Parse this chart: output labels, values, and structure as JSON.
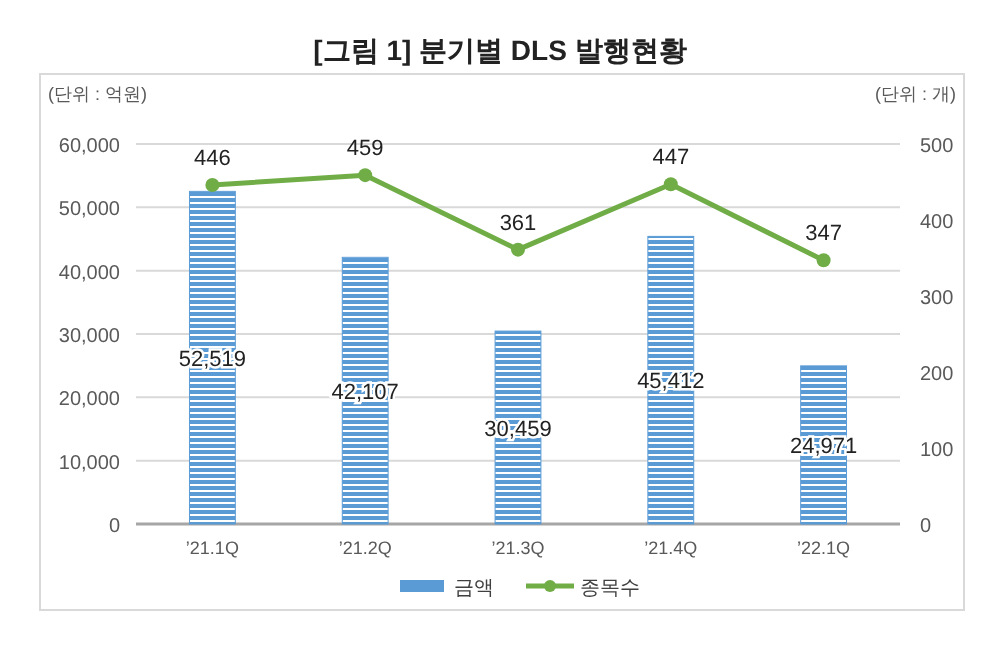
{
  "chart_data": {
    "type": "bar",
    "title": "[그림 1] 분기별 DLS 발행현황",
    "ylabel": "(단위 : 억원)",
    "y2label": "(단위 : 개)",
    "categories": [
      "’21.1Q",
      "’21.2Q",
      "’21.3Q",
      "’21.4Q",
      "’22.1Q"
    ],
    "series": [
      {
        "name": "금액",
        "color": "#5b9bd5",
        "values": [
          52519,
          42107,
          30459,
          45412,
          24971
        ],
        "value_labels": [
          "52,519",
          "42,107",
          "30,459",
          "45,412",
          "24,971"
        ]
      },
      {
        "name": "종목수",
        "type": "line",
        "axis": "y2",
        "color": "#70ad47",
        "marker": "circle",
        "values": [
          446,
          459,
          361,
          447,
          347
        ],
        "value_labels": [
          "446",
          "459",
          "361",
          "447",
          "347"
        ]
      }
    ],
    "ylim": [
      0,
      60000
    ],
    "yticks": [
      0,
      {
        "value": 10000,
        "label": "10,000"
      },
      {
        "value": 20000,
        "label": "20,000"
      },
      {
        "value": 30000,
        "label": "30,000"
      },
      {
        "value": 40000,
        "label": "40,000"
      },
      {
        "value": 50000,
        "label": "50,000"
      },
      {
        "value": 60000,
        "label": "60,000"
      }
    ],
    "y2lim": [
      0,
      500
    ],
    "y2ticks": [
      0,
      100,
      200,
      300,
      400,
      500
    ],
    "grid": "y",
    "legend": "bottom"
  }
}
